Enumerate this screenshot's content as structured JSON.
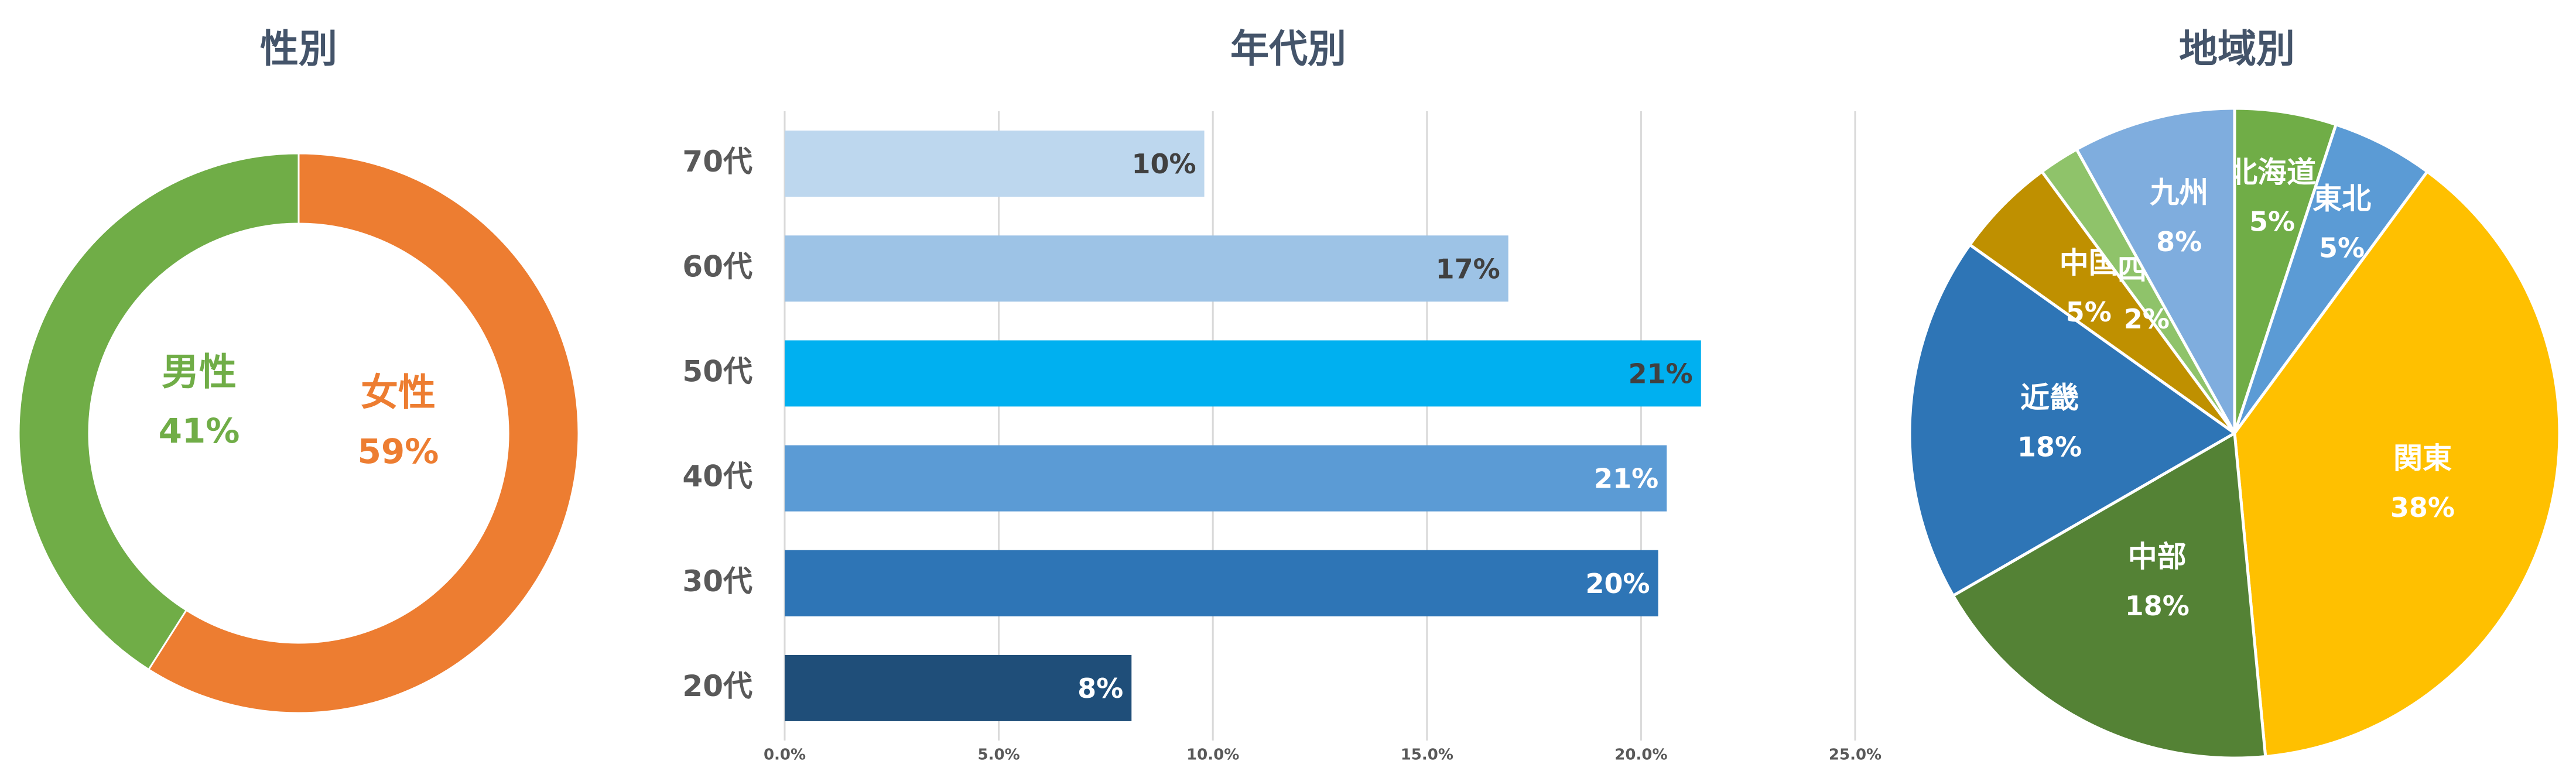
{
  "chart_data": [
    {
      "type": "pie",
      "subtype": "donut",
      "title": "性別",
      "slices": [
        {
          "label": "女性",
          "value": 59,
          "value_label": "59%",
          "color": "#ed7d31"
        },
        {
          "label": "男性",
          "value": 41,
          "value_label": "41%",
          "color": "#70ad47"
        }
      ]
    },
    {
      "type": "bar",
      "orientation": "horizontal",
      "title": "年代別",
      "categories": [
        "70代",
        "60代",
        "50代",
        "40代",
        "30代",
        "20代"
      ],
      "values": [
        9.8,
        16.9,
        21.4,
        20.6,
        20.4,
        8.1
      ],
      "value_labels": [
        "10%",
        "17%",
        "21%",
        "21%",
        "20%",
        "8%"
      ],
      "bar_colors": [
        "#bdd7ee",
        "#9dc3e6",
        "#00b0f0",
        "#5b9bd5",
        "#2e75b6",
        "#1f4e79"
      ],
      "label_colors": [
        "#404040",
        "#404040",
        "#404040",
        "#ffffff",
        "#ffffff",
        "#ffffff"
      ],
      "xlim": [
        0,
        25
      ],
      "xticks": [
        "0.0%",
        "5.0%",
        "10.0%",
        "15.0%",
        "20.0%",
        "25.0%"
      ],
      "grid": true
    },
    {
      "type": "pie",
      "title": "地域別",
      "slices": [
        {
          "label": "北海道",
          "value": 5,
          "value_label": "5%",
          "color": "#70ad47"
        },
        {
          "label": "東北",
          "value": 5,
          "value_label": "5%",
          "color": "#5b9bd5"
        },
        {
          "label": "関東",
          "value": 38,
          "value_label": "38%",
          "color": "#ffc000"
        },
        {
          "label": "中部",
          "value": 18,
          "value_label": "18%",
          "color": "#548235"
        },
        {
          "label": "近畿",
          "value": 18,
          "value_label": "18%",
          "color": "#2e75b6"
        },
        {
          "label": "中国",
          "value": 5,
          "value_label": "5%",
          "color": "#bf9000"
        },
        {
          "label": "四国",
          "value": 2,
          "value_label": "2%",
          "color": "#8fc36a"
        },
        {
          "label": "九州",
          "value": 8,
          "value_label": "8%",
          "color": "#7fadde"
        }
      ]
    }
  ]
}
